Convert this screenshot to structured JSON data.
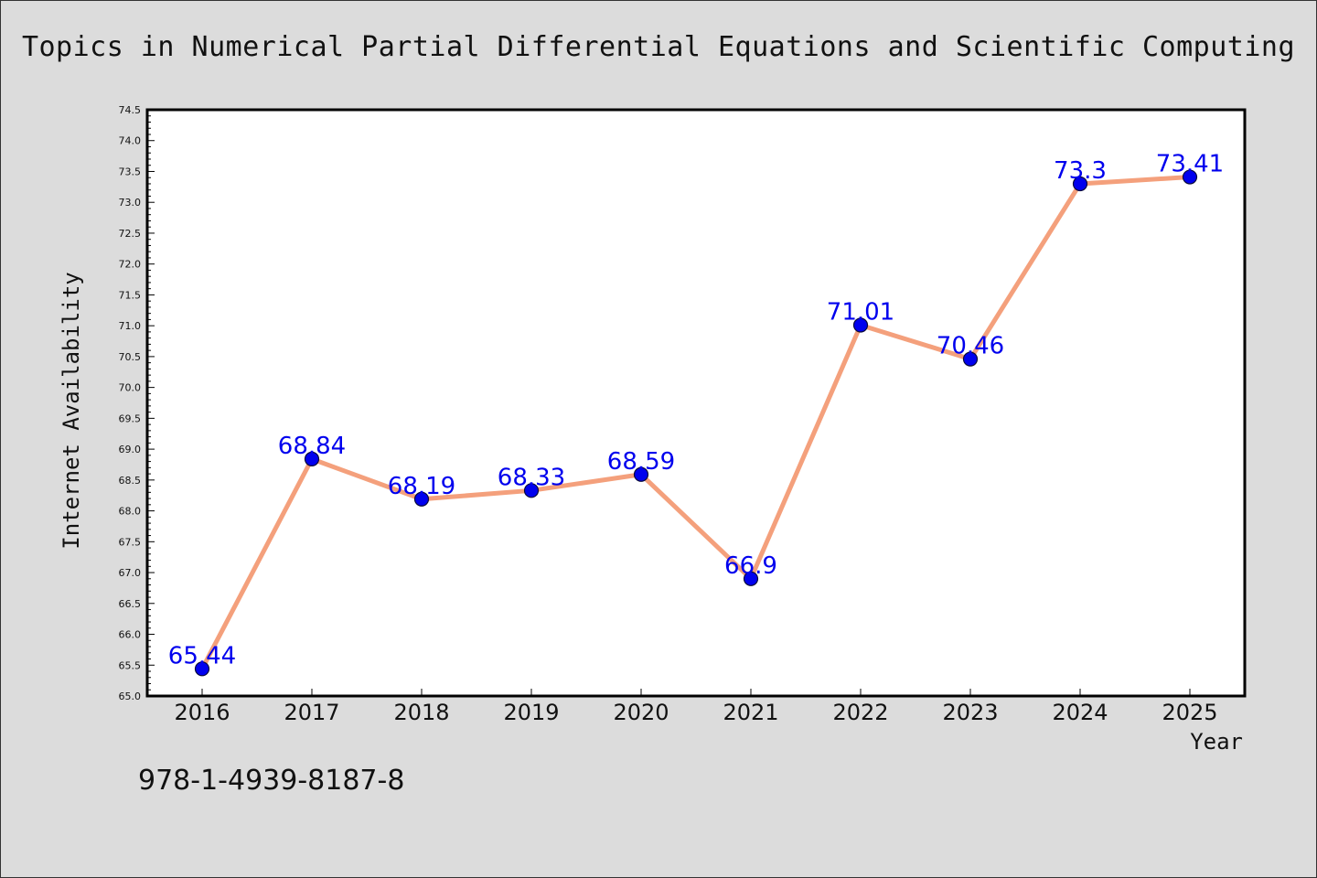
{
  "colors": {
    "line": "#f4a07c",
    "marker": "#0000ee",
    "marker_edge": "#0a0a3a",
    "label": "#0000ee",
    "background": "#dcdcdc",
    "plot_area": "#ffffff"
  },
  "footer": {
    "code": "978-1-4939-8187-8"
  },
  "chart_data": {
    "type": "line",
    "title": "Topics in Numerical Partial Differential Equations and Scientific Computing",
    "xlabel": "Year",
    "ylabel": "Internet Availability",
    "categories": [
      "2016",
      "2017",
      "2018",
      "2019",
      "2020",
      "2021",
      "2022",
      "2023",
      "2024",
      "2025"
    ],
    "series": [
      {
        "values": [
          65.44,
          68.84,
          68.19,
          68.33,
          68.59,
          66.9,
          71.01,
          70.46,
          73.3,
          73.41
        ],
        "labels": [
          "65.44",
          "68.84",
          "68.19",
          "68.33",
          "68.59",
          "66.9",
          "71.01",
          "70.46",
          "73.3",
          "73.41"
        ]
      }
    ],
    "ylim": [
      65.0,
      74.5
    ],
    "yticks": [
      "65.0",
      "65.5",
      "66.0",
      "66.5",
      "67.0",
      "67.5",
      "68.0",
      "68.5",
      "69.0",
      "69.5",
      "70.0",
      "70.5",
      "71.0",
      "71.5",
      "72.0",
      "72.5",
      "73.0",
      "73.5",
      "74.0",
      "74.5"
    ],
    "grid": false,
    "legend": "none"
  }
}
